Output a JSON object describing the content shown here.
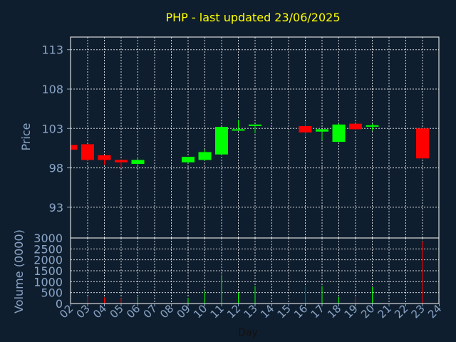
{
  "chart_data": {
    "type": "candlestick",
    "title": "PHP - last updated 23/06/2025",
    "colors": {
      "background": "#0f1e2e",
      "plot_border": "#ffffff",
      "grid": "#ffffff",
      "tick_text": "#8aa6c8",
      "title_text": "#ffff00",
      "up": "#00ff00",
      "down": "#ff0000"
    },
    "price_panel": {
      "ylabel": "Price",
      "ylim": [
        89.1,
        114.6
      ],
      "yticks": [
        "93",
        "98",
        "103",
        "108",
        "113"
      ],
      "grid": true
    },
    "volume_panel": {
      "ylabel": "Volume (0000)",
      "ylim": [
        0,
        3000
      ],
      "yticks": [
        "0",
        "500",
        "1000",
        "1500",
        "2000",
        "2500",
        "3000"
      ],
      "grid": true
    },
    "x_axis": {
      "xlabel": "Day",
      "ticks": [
        "02",
        "03",
        "04",
        "05",
        "06",
        "07",
        "08",
        "09",
        "10",
        "11",
        "12",
        "13",
        "14",
        "15",
        "16",
        "17",
        "18",
        "19",
        "20",
        "21",
        "22",
        "23",
        "24"
      ]
    },
    "candles": [
      {
        "day": "02",
        "open": 100.9,
        "high": 100.9,
        "low": 100.3,
        "close": 100.3
      },
      {
        "day": "03",
        "open": 101.0,
        "high": 101.0,
        "low": 98.9,
        "close": 99.0
      },
      {
        "day": "04",
        "open": 99.6,
        "high": 99.6,
        "low": 98.4,
        "close": 99.0
      },
      {
        "day": "05",
        "open": 99.0,
        "high": 99.0,
        "low": 98.0,
        "close": 98.7
      },
      {
        "day": "06",
        "open": 98.5,
        "high": 99.4,
        "low": 98.4,
        "close": 99.0
      },
      {
        "day": "09",
        "open": 98.7,
        "high": 99.4,
        "low": 98.6,
        "close": 99.4
      },
      {
        "day": "10",
        "open": 99.0,
        "high": 100.3,
        "low": 98.9,
        "close": 100.0
      },
      {
        "day": "11",
        "open": 99.7,
        "high": 103.2,
        "low": 99.7,
        "close": 103.2
      },
      {
        "day": "12",
        "open": 102.8,
        "high": 104.1,
        "low": 102.7,
        "close": 102.9
      },
      {
        "day": "13",
        "open": 103.3,
        "high": 103.5,
        "low": 102.4,
        "close": 103.5
      },
      {
        "day": "16",
        "open": 103.3,
        "high": 103.9,
        "low": 102.0,
        "close": 102.5
      },
      {
        "day": "17",
        "open": 102.6,
        "high": 102.9,
        "low": 101.5,
        "close": 102.9
      },
      {
        "day": "18",
        "open": 101.3,
        "high": 103.6,
        "low": 101.3,
        "close": 103.5
      },
      {
        "day": "19",
        "open": 103.6,
        "high": 103.6,
        "low": 102.8,
        "close": 102.9
      },
      {
        "day": "20",
        "open": 103.4,
        "high": 103.6,
        "low": 102.7,
        "close": 103.4
      },
      {
        "day": "23",
        "open": 103.0,
        "high": 103.0,
        "low": 99.2,
        "close": 99.2
      }
    ],
    "volume": [
      {
        "day": "02",
        "value": 20
      },
      {
        "day": "03",
        "value": 300
      },
      {
        "day": "04",
        "value": 280
      },
      {
        "day": "05",
        "value": 250
      },
      {
        "day": "06",
        "value": 300
      },
      {
        "day": "09",
        "value": 260
      },
      {
        "day": "10",
        "value": 560
      },
      {
        "day": "11",
        "value": 1320
      },
      {
        "day": "12",
        "value": 500
      },
      {
        "day": "13",
        "value": 800
      },
      {
        "day": "16",
        "value": 800
      },
      {
        "day": "17",
        "value": 800
      },
      {
        "day": "18",
        "value": 300
      },
      {
        "day": "19",
        "value": 280
      },
      {
        "day": "20",
        "value": 750
      },
      {
        "day": "23",
        "value": 2850
      }
    ]
  }
}
